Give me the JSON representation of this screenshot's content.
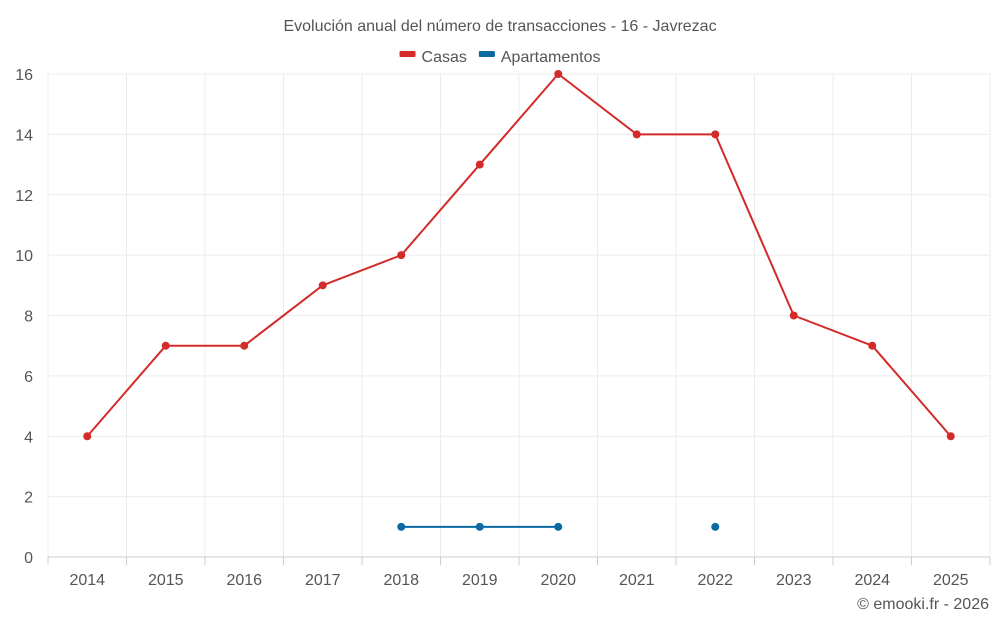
{
  "chart_data": {
    "type": "line",
    "title": "Evolución anual del número de transacciones - 16 - Javrezac",
    "categories": [
      "2014",
      "2015",
      "2016",
      "2017",
      "2018",
      "2019",
      "2020",
      "2021",
      "2022",
      "2023",
      "2024",
      "2025"
    ],
    "series": [
      {
        "name": "Casas",
        "color": "#d32a2a",
        "values": [
          4,
          7,
          7,
          9,
          10,
          13,
          16,
          14,
          14,
          8,
          7,
          4
        ]
      },
      {
        "name": "Apartamentos",
        "color": "#0b6aa2",
        "values": [
          null,
          null,
          null,
          null,
          1,
          1,
          1,
          null,
          1,
          null,
          null,
          null
        ]
      }
    ],
    "ylim": [
      0,
      16
    ],
    "yticks": [
      "0",
      "2",
      "4",
      "6",
      "8",
      "10",
      "12",
      "14",
      "16"
    ],
    "grid": true,
    "legend_position": "top-center",
    "xlabel": "",
    "ylabel": ""
  },
  "credit": "© emooki.fr - 2026"
}
